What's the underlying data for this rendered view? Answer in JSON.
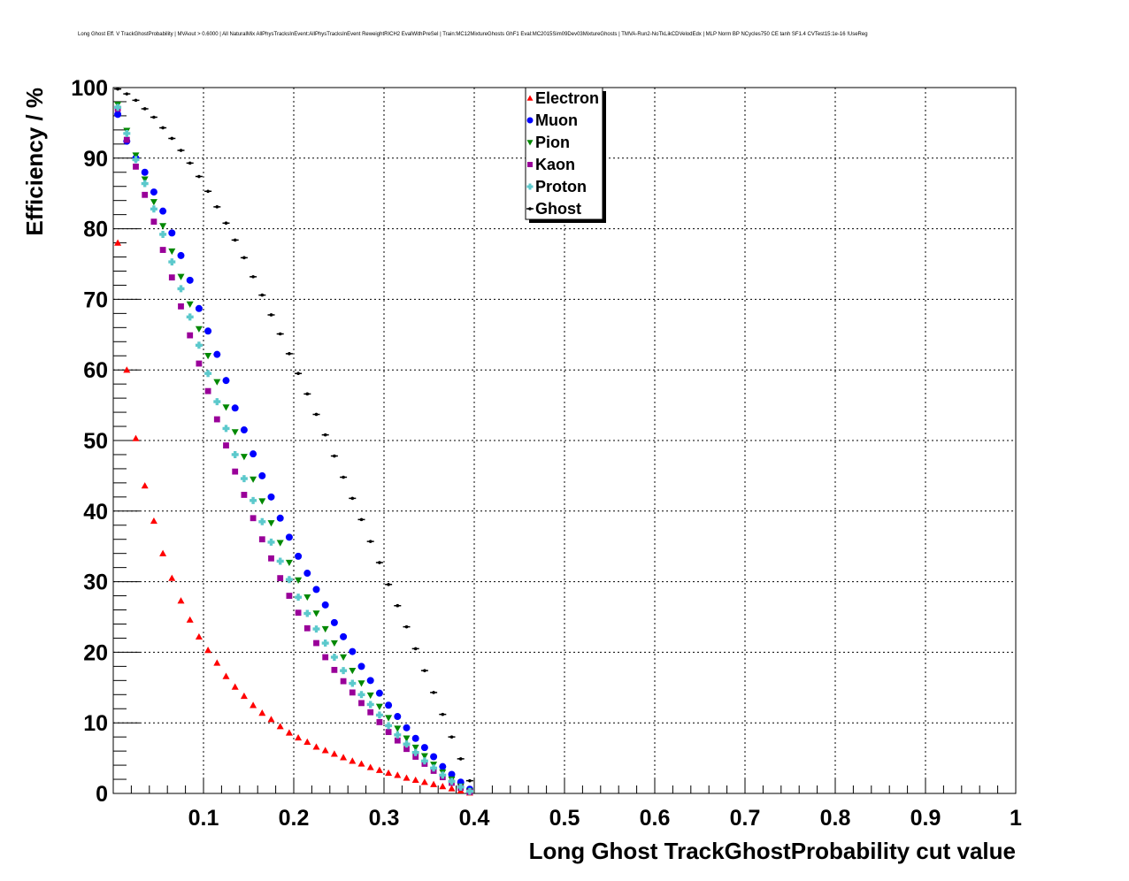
{
  "chart_data": {
    "type": "scatter",
    "title": "Long Ghost Eff. V TrackGhostProbability | MVAout > 0.6000 | All NaturalMix AllPhysTracksInEvent:AllPhysTracksInEvent ReweightRICH2 EvalWithPreSel | Train:MC12MixtureGhosts GhF1 Eval:MC2015Sim09Dev03MixtureGhosts | TMVA-Run2-NoTkLikCDVelodEdx | MLP Norm BP NCycles750 CE tanh SF1.4 CVTest15:1e-16 !UseReg",
    "xlabel": "Long Ghost TrackGhostProbability cut value",
    "ylabel": "Efficiency / %",
    "xlim": [
      0,
      1
    ],
    "ylim": [
      0,
      100
    ],
    "xticks": [
      "0.1",
      "0.2",
      "0.3",
      "0.4",
      "0.5",
      "0.6",
      "0.7",
      "0.8",
      "0.9",
      "1"
    ],
    "yticks": [
      "0",
      "10",
      "20",
      "30",
      "40",
      "50",
      "60",
      "70",
      "80",
      "90",
      "100"
    ],
    "grid": true,
    "legend_position": "top-center",
    "series": [
      {
        "name": "Electron",
        "marker": "triangle-up",
        "color": "#ff0000",
        "x": [
          0.005,
          0.015,
          0.025,
          0.035,
          0.045,
          0.055,
          0.065,
          0.075,
          0.085,
          0.095,
          0.105,
          0.115,
          0.125,
          0.135,
          0.145,
          0.155,
          0.165,
          0.175,
          0.185,
          0.195,
          0.205,
          0.215,
          0.225,
          0.235,
          0.245,
          0.255,
          0.265,
          0.275,
          0.285,
          0.295,
          0.305,
          0.315,
          0.325,
          0.335,
          0.345,
          0.355,
          0.365,
          0.375,
          0.385,
          0.395
        ],
        "y": [
          78.0,
          60.0,
          50.3,
          43.6,
          38.6,
          34.0,
          30.5,
          27.3,
          24.6,
          22.2,
          20.3,
          18.5,
          16.6,
          15.1,
          13.8,
          12.5,
          11.4,
          10.5,
          9.5,
          8.6,
          7.9,
          7.3,
          6.6,
          6.1,
          5.6,
          5.1,
          4.6,
          4.2,
          3.7,
          3.3,
          2.9,
          2.6,
          2.2,
          1.9,
          1.6,
          1.3,
          1.0,
          0.7,
          0.4,
          0.1
        ]
      },
      {
        "name": "Muon",
        "marker": "circle",
        "color": "#0000ff",
        "x": [
          0.005,
          0.015,
          0.025,
          0.035,
          0.045,
          0.055,
          0.065,
          0.075,
          0.085,
          0.095,
          0.105,
          0.115,
          0.125,
          0.135,
          0.145,
          0.155,
          0.165,
          0.175,
          0.185,
          0.195,
          0.205,
          0.215,
          0.225,
          0.235,
          0.245,
          0.255,
          0.265,
          0.275,
          0.285,
          0.295,
          0.305,
          0.315,
          0.325,
          0.335,
          0.345,
          0.355,
          0.365,
          0.375,
          0.385,
          0.395
        ],
        "y": [
          96.2,
          92.4,
          90.0,
          88.0,
          85.2,
          82.5,
          79.4,
          76.2,
          72.7,
          68.7,
          65.5,
          62.2,
          58.5,
          54.6,
          51.5,
          48.1,
          45.0,
          42.0,
          39.0,
          36.3,
          33.6,
          31.2,
          28.9,
          26.7,
          24.2,
          22.2,
          20.1,
          18.0,
          16.0,
          14.2,
          12.5,
          10.9,
          9.3,
          7.8,
          6.5,
          5.2,
          3.8,
          2.7,
          1.6,
          0.6
        ]
      },
      {
        "name": "Pion",
        "marker": "triangle-down",
        "color": "#008800",
        "x": [
          0.005,
          0.015,
          0.025,
          0.035,
          0.045,
          0.055,
          0.065,
          0.075,
          0.085,
          0.095,
          0.105,
          0.115,
          0.125,
          0.135,
          0.145,
          0.155,
          0.165,
          0.175,
          0.185,
          0.195,
          0.205,
          0.215,
          0.225,
          0.235,
          0.245,
          0.255,
          0.265,
          0.275,
          0.285,
          0.295,
          0.305,
          0.315,
          0.325,
          0.335,
          0.345,
          0.355,
          0.365,
          0.375,
          0.385,
          0.395
        ],
        "y": [
          97.6,
          93.9,
          90.4,
          87.0,
          83.8,
          80.4,
          76.8,
          73.2,
          69.3,
          65.8,
          62.0,
          58.3,
          54.7,
          51.2,
          47.7,
          44.5,
          41.4,
          38.3,
          35.5,
          32.7,
          30.2,
          27.8,
          25.5,
          23.3,
          21.3,
          19.3,
          17.4,
          15.6,
          13.9,
          12.3,
          10.7,
          9.2,
          7.8,
          6.5,
          5.3,
          4.1,
          3.0,
          2.0,
          1.0,
          0.3
        ]
      },
      {
        "name": "Kaon",
        "marker": "square",
        "color": "#990099",
        "x": [
          0.005,
          0.015,
          0.025,
          0.035,
          0.045,
          0.055,
          0.065,
          0.075,
          0.085,
          0.095,
          0.105,
          0.115,
          0.125,
          0.135,
          0.145,
          0.155,
          0.165,
          0.175,
          0.185,
          0.195,
          0.205,
          0.215,
          0.225,
          0.235,
          0.245,
          0.255,
          0.265,
          0.275,
          0.285,
          0.295,
          0.305,
          0.315,
          0.325,
          0.335,
          0.345,
          0.355,
          0.365,
          0.375,
          0.385,
          0.395
        ],
        "y": [
          97.0,
          92.6,
          88.8,
          84.8,
          81.0,
          77.0,
          73.1,
          69.0,
          64.9,
          60.9,
          57.0,
          53.0,
          49.3,
          45.6,
          42.3,
          39.0,
          36.0,
          33.3,
          30.5,
          28.0,
          25.6,
          23.4,
          21.3,
          19.3,
          17.5,
          15.9,
          14.3,
          12.8,
          11.5,
          10.1,
          8.7,
          7.5,
          6.3,
          5.2,
          4.2,
          3.2,
          2.3,
          1.5,
          0.8,
          0.2
        ]
      },
      {
        "name": "Proton",
        "marker": "cross",
        "color": "#5cc9cc",
        "x": [
          0.005,
          0.015,
          0.025,
          0.035,
          0.045,
          0.055,
          0.065,
          0.075,
          0.085,
          0.095,
          0.105,
          0.115,
          0.125,
          0.135,
          0.145,
          0.155,
          0.165,
          0.175,
          0.185,
          0.195,
          0.205,
          0.215,
          0.225,
          0.235,
          0.245,
          0.255,
          0.265,
          0.275,
          0.285,
          0.295,
          0.305,
          0.315,
          0.325,
          0.335,
          0.345,
          0.355,
          0.365,
          0.375,
          0.385,
          0.395
        ],
        "y": [
          97.2,
          93.5,
          89.8,
          86.4,
          82.8,
          79.2,
          75.3,
          71.5,
          67.5,
          63.5,
          59.5,
          55.5,
          51.7,
          48.0,
          44.6,
          41.5,
          38.5,
          35.6,
          32.9,
          30.3,
          27.8,
          25.5,
          23.3,
          21.3,
          19.3,
          17.4,
          15.6,
          14.0,
          12.6,
          11.1,
          9.6,
          8.3,
          7.0,
          5.8,
          4.6,
          3.6,
          2.6,
          1.7,
          0.9,
          0.3
        ]
      },
      {
        "name": "Ghost",
        "marker": "small-cross",
        "color": "#000000",
        "x": [
          0.005,
          0.015,
          0.025,
          0.035,
          0.045,
          0.055,
          0.065,
          0.075,
          0.085,
          0.095,
          0.105,
          0.115,
          0.125,
          0.135,
          0.145,
          0.155,
          0.165,
          0.175,
          0.185,
          0.195,
          0.205,
          0.215,
          0.225,
          0.235,
          0.245,
          0.255,
          0.265,
          0.275,
          0.285,
          0.295,
          0.305,
          0.315,
          0.325,
          0.335,
          0.345,
          0.355,
          0.365,
          0.375,
          0.385,
          0.395
        ],
        "y": [
          99.8,
          99.1,
          98.2,
          97.0,
          95.8,
          94.3,
          92.8,
          91.1,
          89.3,
          87.4,
          85.3,
          83.1,
          80.8,
          78.4,
          75.9,
          73.2,
          70.6,
          67.8,
          65.1,
          62.3,
          59.5,
          56.6,
          53.7,
          50.8,
          47.8,
          44.8,
          41.8,
          38.8,
          35.7,
          32.7,
          29.6,
          26.6,
          23.6,
          20.5,
          17.4,
          14.3,
          11.2,
          8.0,
          4.9,
          1.8
        ]
      }
    ]
  }
}
